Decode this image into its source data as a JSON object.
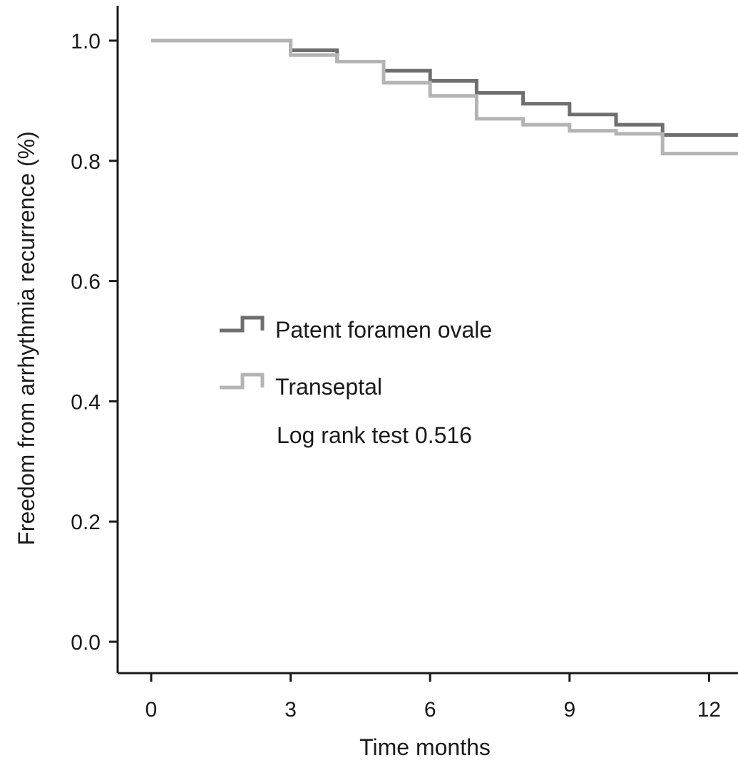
{
  "chart_data": {
    "type": "line",
    "step": true,
    "xlabel": "Time months",
    "ylabel": "Freedom from arrhythmia recurrence (%)",
    "xlim": [
      0,
      12.7
    ],
    "ylim": [
      0,
      1.0
    ],
    "xticks": [
      0,
      3,
      6,
      9,
      12
    ],
    "yticks": [
      0.0,
      0.2,
      0.4,
      0.6,
      0.8,
      1.0
    ],
    "grid": false,
    "legend": "middle-left",
    "series": [
      {
        "name": "Patent foramen ovale",
        "color": "#6e6e6e",
        "x": [
          0,
          3,
          4,
          5,
          6,
          7,
          8,
          9,
          10,
          11,
          12.7
        ],
        "y": [
          1.0,
          0.984,
          0.965,
          0.95,
          0.933,
          0.913,
          0.895,
          0.877,
          0.86,
          0.843,
          0.843
        ]
      },
      {
        "name": "Transeptal",
        "color": "#b4b4b4",
        "x": [
          0,
          3,
          4,
          5,
          6,
          7,
          8,
          9,
          10,
          11,
          12.7
        ],
        "y": [
          1.0,
          0.976,
          0.965,
          0.93,
          0.908,
          0.87,
          0.86,
          0.85,
          0.845,
          0.812,
          0.812
        ]
      }
    ],
    "annotation": "Log rank test 0.516"
  }
}
